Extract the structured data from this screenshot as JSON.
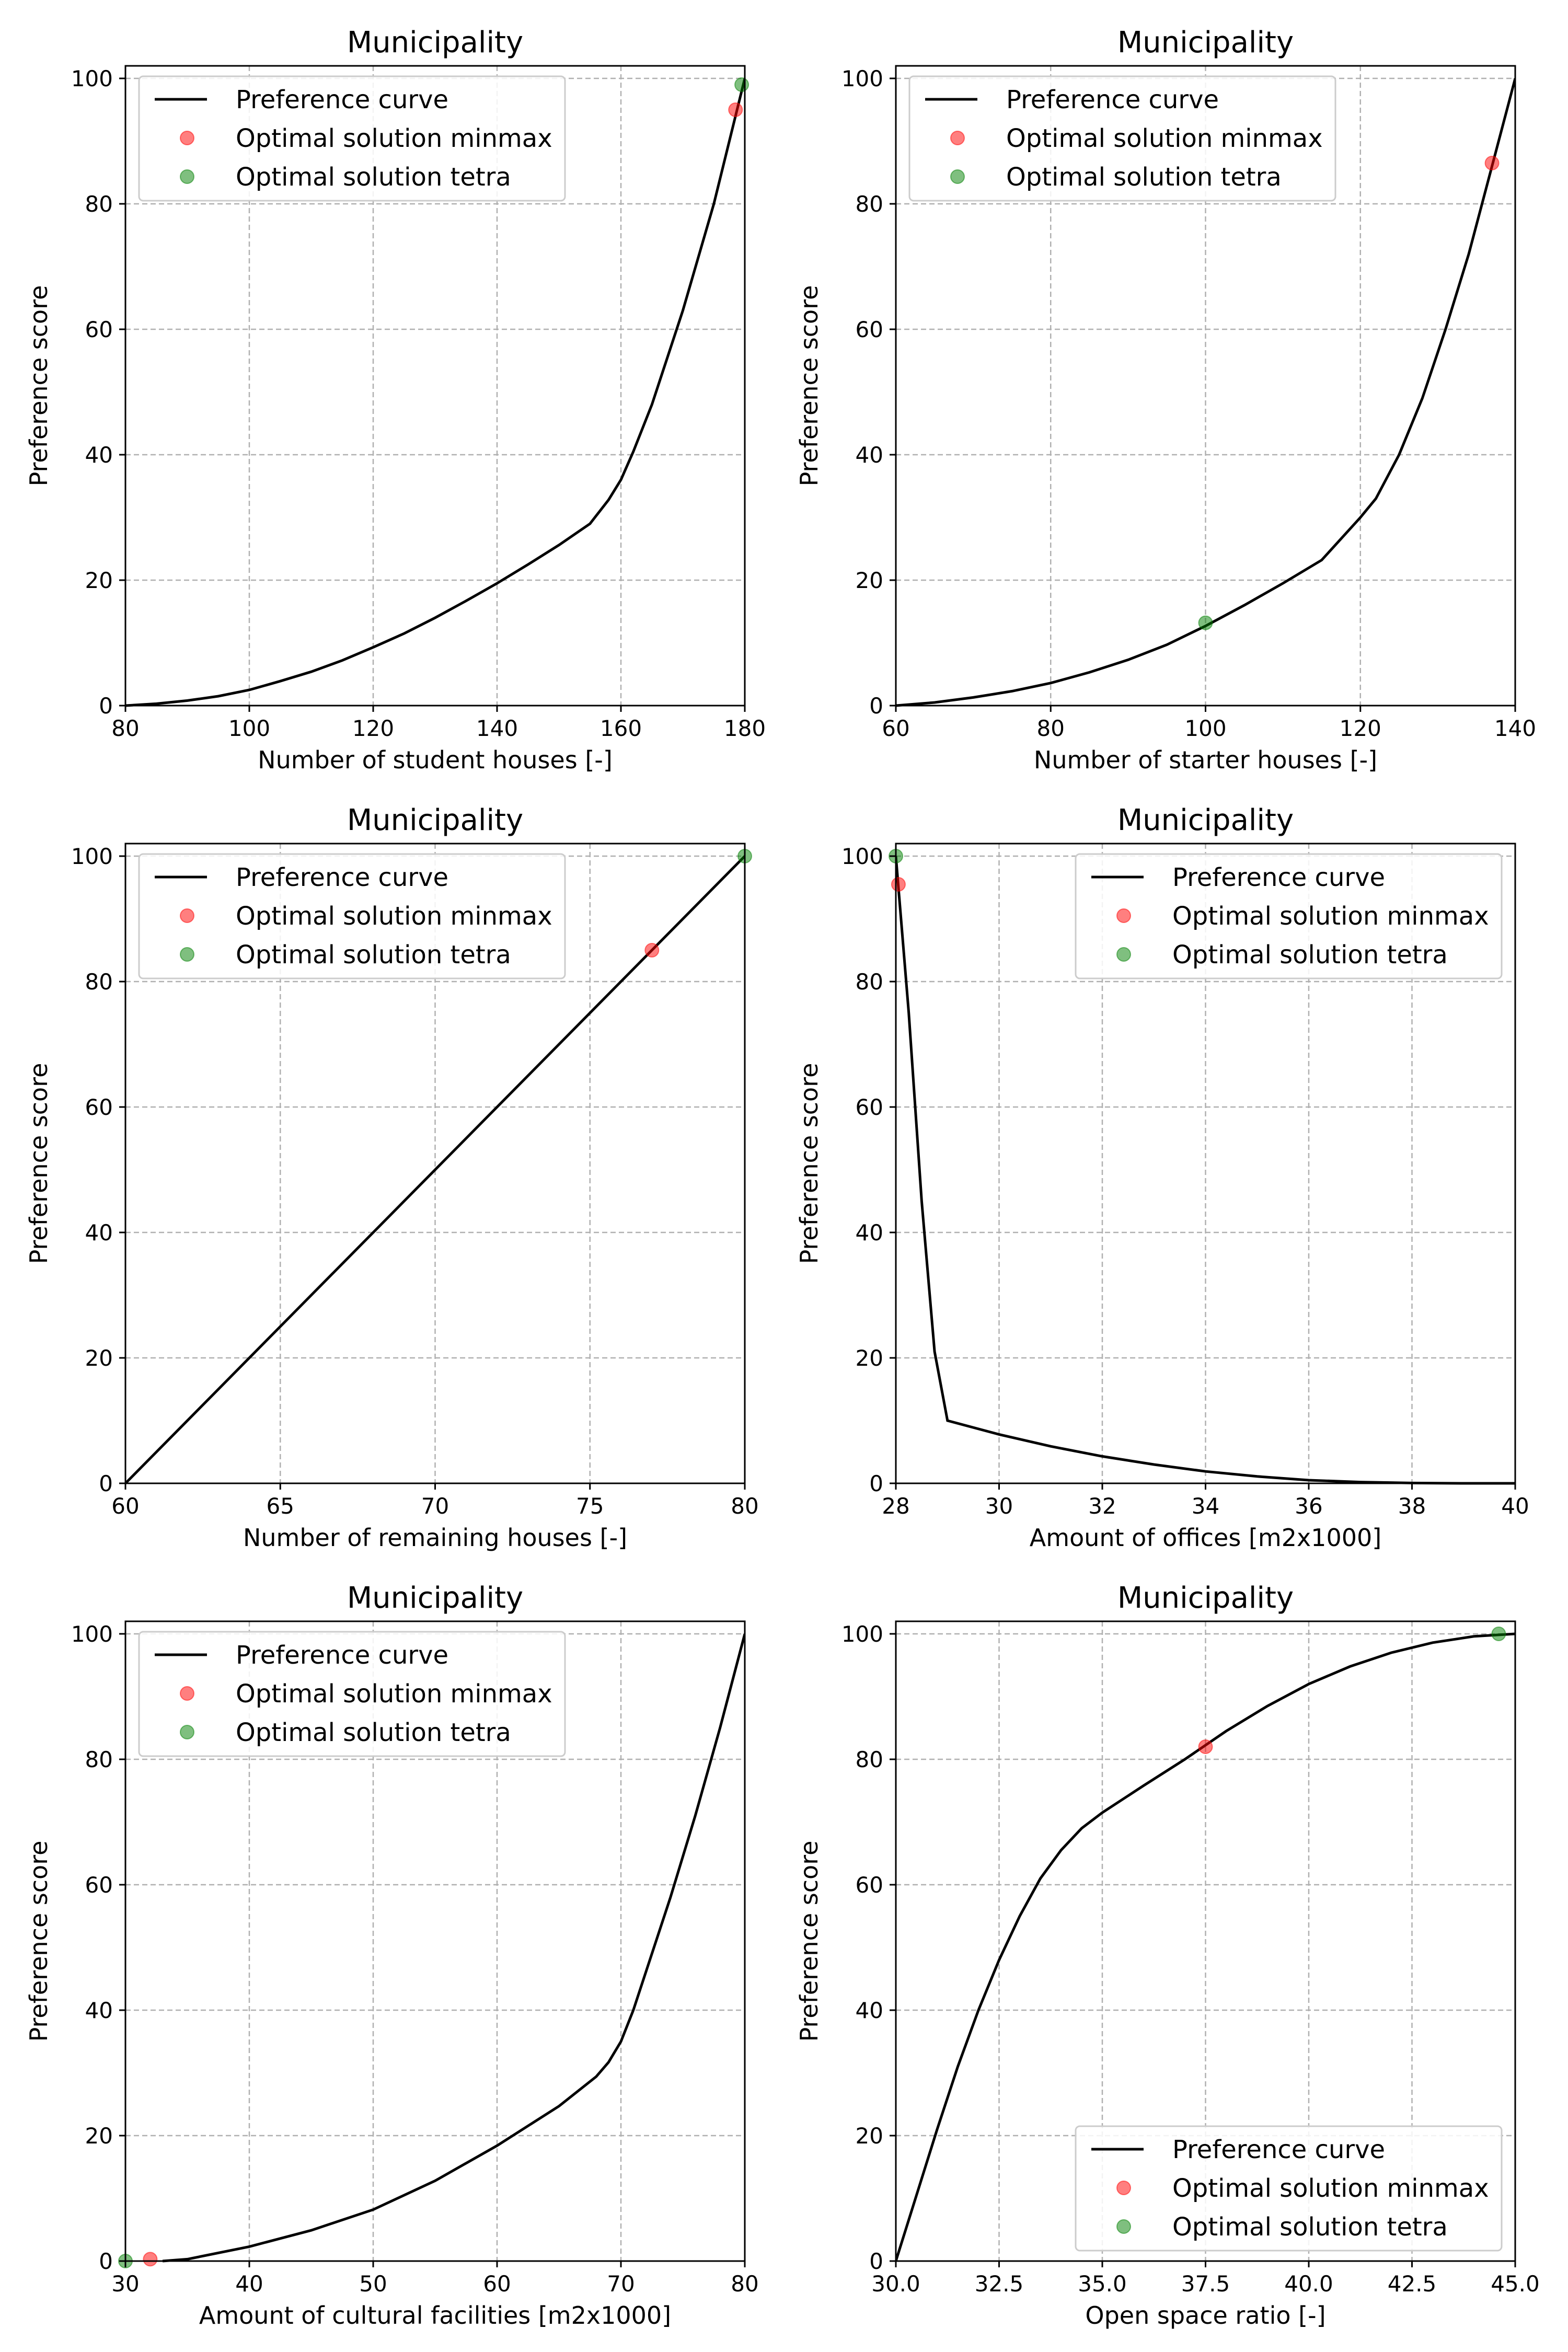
{
  "colors": {
    "curve": "#000000",
    "minmax": "#ff0000",
    "tetra": "#008000",
    "grid": "#b0b0b0",
    "legend_frame": "#cccccc"
  },
  "legend_labels": [
    "Preference curve",
    "Optimal solution minmax",
    "Optimal solution tetra"
  ],
  "chart_data": [
    {
      "type": "line",
      "title": "Municipality",
      "xlabel": "Number of student houses [-]",
      "ylabel": "Preference score",
      "xlim": [
        80,
        180
      ],
      "ylim": [
        0,
        102
      ],
      "xticks": [
        80,
        100,
        120,
        140,
        160,
        180
      ],
      "xtick_labels": [
        "80",
        "100",
        "120",
        "140",
        "160",
        "180"
      ],
      "yticks": [
        0,
        20,
        40,
        60,
        80,
        100
      ],
      "ytick_labels": [
        "0",
        "20",
        "40",
        "60",
        "80",
        "100"
      ],
      "grid": true,
      "legend_position": "upper-left",
      "series": [
        {
          "name": "Preference curve",
          "x": [
            80,
            85,
            90,
            95,
            100,
            105,
            110,
            115,
            120,
            125,
            130,
            135,
            140,
            145,
            150,
            155,
            158,
            160,
            162,
            165,
            170,
            175,
            180
          ],
          "y": [
            0,
            0.3,
            0.8,
            1.5,
            2.5,
            3.9,
            5.4,
            7.2,
            9.3,
            11.5,
            14.0,
            16.7,
            19.5,
            22.5,
            25.6,
            29.0,
            32.8,
            36.0,
            40.5,
            48.0,
            63.0,
            80.0,
            100.0
          ]
        }
      ],
      "points": [
        {
          "name": "Optimal solution minmax",
          "x": 178.5,
          "y": 95
        },
        {
          "name": "Optimal solution tetra",
          "x": 179.5,
          "y": 99
        }
      ]
    },
    {
      "type": "line",
      "title": "Municipality",
      "xlabel": "Number of starter houses [-]",
      "ylabel": "Preference score",
      "xlim": [
        60,
        140
      ],
      "ylim": [
        0,
        102
      ],
      "xticks": [
        60,
        80,
        100,
        120,
        140
      ],
      "xtick_labels": [
        "60",
        "80",
        "100",
        "120",
        "140"
      ],
      "yticks": [
        0,
        20,
        40,
        60,
        80,
        100
      ],
      "ytick_labels": [
        "0",
        "20",
        "40",
        "60",
        "80",
        "100"
      ],
      "grid": true,
      "legend_position": "upper-left",
      "series": [
        {
          "name": "Preference curve",
          "x": [
            60,
            65,
            70,
            75,
            80,
            85,
            90,
            95,
            100,
            105,
            110,
            115,
            120,
            122,
            125,
            128,
            131,
            134,
            137,
            140
          ],
          "y": [
            0,
            0.5,
            1.3,
            2.3,
            3.6,
            5.3,
            7.3,
            9.7,
            12.7,
            16.0,
            19.5,
            23.2,
            30.0,
            33.0,
            40.0,
            49.0,
            60.0,
            72.0,
            86.0,
            100.0
          ]
        }
      ],
      "points": [
        {
          "name": "Optimal solution minmax",
          "x": 137,
          "y": 86.5
        },
        {
          "name": "Optimal solution tetra",
          "x": 100,
          "y": 13.2
        }
      ]
    },
    {
      "type": "line",
      "title": "Municipality",
      "xlabel": "Number of remaining houses [-]",
      "ylabel": "Preference score",
      "xlim": [
        60,
        80
      ],
      "ylim": [
        0,
        102
      ],
      "xticks": [
        60,
        65,
        70,
        75,
        80
      ],
      "xtick_labels": [
        "60",
        "65",
        "70",
        "75",
        "80"
      ],
      "yticks": [
        0,
        20,
        40,
        60,
        80,
        100
      ],
      "ytick_labels": [
        "0",
        "20",
        "40",
        "60",
        "80",
        "100"
      ],
      "grid": true,
      "legend_position": "upper-left",
      "series": [
        {
          "name": "Preference curve",
          "x": [
            60,
            80
          ],
          "y": [
            0,
            100
          ]
        }
      ],
      "points": [
        {
          "name": "Optimal solution minmax",
          "x": 77,
          "y": 85
        },
        {
          "name": "Optimal solution tetra",
          "x": 80,
          "y": 100
        }
      ]
    },
    {
      "type": "line",
      "title": "Municipality",
      "xlabel": "Amount of offices [m2x1000]",
      "ylabel": "Preference score",
      "xlim": [
        28,
        40
      ],
      "ylim": [
        0,
        102
      ],
      "xticks": [
        28,
        30,
        32,
        34,
        36,
        38,
        40
      ],
      "xtick_labels": [
        "28",
        "30",
        "32",
        "34",
        "36",
        "38",
        "40"
      ],
      "yticks": [
        0,
        20,
        40,
        60,
        80,
        100
      ],
      "ytick_labels": [
        "0",
        "20",
        "40",
        "60",
        "80",
        "100"
      ],
      "grid": true,
      "legend_position": "upper-right",
      "series": [
        {
          "name": "Preference curve",
          "x": [
            28,
            28.25,
            28.5,
            28.75,
            29,
            30,
            31,
            32,
            33,
            34,
            35,
            36,
            37,
            38,
            39,
            40
          ],
          "y": [
            100,
            75,
            45,
            21,
            10,
            7.8,
            5.9,
            4.3,
            3.0,
            1.9,
            1.1,
            0.5,
            0.2,
            0.05,
            0,
            0
          ]
        }
      ],
      "points": [
        {
          "name": "Optimal solution minmax",
          "x": 28.05,
          "y": 95.5
        },
        {
          "name": "Optimal solution tetra",
          "x": 28,
          "y": 100
        }
      ]
    },
    {
      "type": "line",
      "title": "Municipality",
      "xlabel": "Amount of cultural facilities [m2x1000]",
      "ylabel": "Preference score",
      "xlim": [
        30,
        80
      ],
      "ylim": [
        0,
        102
      ],
      "xticks": [
        30,
        40,
        50,
        60,
        70,
        80
      ],
      "xtick_labels": [
        "30",
        "40",
        "50",
        "60",
        "70",
        "80"
      ],
      "yticks": [
        0,
        20,
        40,
        60,
        80,
        100
      ],
      "ytick_labels": [
        "0",
        "20",
        "40",
        "60",
        "80",
        "100"
      ],
      "grid": true,
      "legend_position": "upper-left",
      "series": [
        {
          "name": "Preference curve",
          "x": [
            33,
            35,
            40,
            45,
            50,
            55,
            60,
            65,
            68,
            69,
            70,
            71,
            72,
            74,
            76,
            78,
            80
          ],
          "y": [
            0,
            0.3,
            2.3,
            4.9,
            8.2,
            12.8,
            18.4,
            24.7,
            29.4,
            31.7,
            35.0,
            40.0,
            46.0,
            58.0,
            71.0,
            85.0,
            100.0
          ]
        }
      ],
      "points": [
        {
          "name": "Optimal solution minmax",
          "x": 32,
          "y": 0.3
        },
        {
          "name": "Optimal solution tetra",
          "x": 30,
          "y": 0
        }
      ]
    },
    {
      "type": "line",
      "title": "Municipality",
      "xlabel": "Open space ratio [-]",
      "ylabel": "Preference score",
      "xlim": [
        30,
        45
      ],
      "ylim": [
        0,
        102
      ],
      "xticks": [
        30,
        32.5,
        35,
        37.5,
        40,
        42.5,
        45
      ],
      "xtick_labels": [
        "30.0",
        "32.5",
        "35.0",
        "37.5",
        "40.0",
        "42.5",
        "45.0"
      ],
      "yticks": [
        0,
        20,
        40,
        60,
        80,
        100
      ],
      "ytick_labels": [
        "0",
        "20",
        "40",
        "60",
        "80",
        "100"
      ],
      "grid": true,
      "legend_position": "lower-right",
      "series": [
        {
          "name": "Preference curve",
          "x": [
            30,
            30.5,
            31,
            31.5,
            32,
            32.5,
            33,
            33.5,
            34,
            34.5,
            35,
            36,
            37,
            38,
            39,
            40,
            41,
            42,
            43,
            44,
            45
          ],
          "y": [
            0,
            10.5,
            21.0,
            31.0,
            40.0,
            48.0,
            55.0,
            61.0,
            65.5,
            69.0,
            71.5,
            75.8,
            80.0,
            84.5,
            88.5,
            92.0,
            94.8,
            97.0,
            98.6,
            99.6,
            100.0
          ]
        }
      ],
      "points": [
        {
          "name": "Optimal solution minmax",
          "x": 37.5,
          "y": 82
        },
        {
          "name": "Optimal solution tetra",
          "x": 44.6,
          "y": 100
        }
      ]
    }
  ]
}
